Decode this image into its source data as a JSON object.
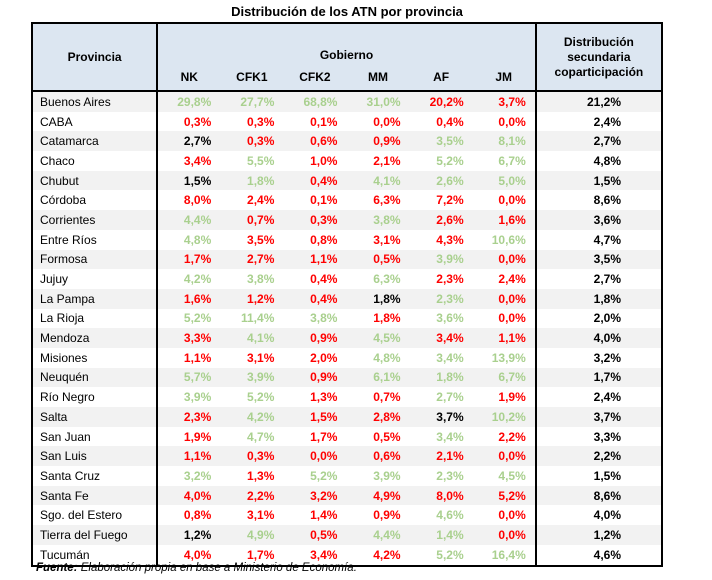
{
  "title": "Distribución de los ATN por provincia",
  "colors": {
    "above": "#a9d08e",
    "below": "#ff0000",
    "equal": "#000000",
    "header_bg": "#dce6f1",
    "row_stripe": "#f2f2f2",
    "border": "#000000"
  },
  "table": {
    "col_province": "Provincia",
    "group_header": "Gobierno",
    "gov_columns": [
      "NK",
      "CFK1",
      "CFK2",
      "MM",
      "AF",
      "JM"
    ],
    "col_distribution": "Distribución secundaria coparticipación",
    "rows": [
      {
        "province": "Buenos Aires",
        "values": [
          {
            "v": "29,8%",
            "t": "above"
          },
          {
            "v": "27,7%",
            "t": "above"
          },
          {
            "v": "68,8%",
            "t": "above"
          },
          {
            "v": "31,0%",
            "t": "above"
          },
          {
            "v": "20,2%",
            "t": "below"
          },
          {
            "v": "3,7%",
            "t": "below"
          }
        ],
        "dist": "21,2%"
      },
      {
        "province": "CABA",
        "values": [
          {
            "v": "0,3%",
            "t": "below"
          },
          {
            "v": "0,3%",
            "t": "below"
          },
          {
            "v": "0,1%",
            "t": "below"
          },
          {
            "v": "0,0%",
            "t": "below"
          },
          {
            "v": "0,4%",
            "t": "below"
          },
          {
            "v": "0,0%",
            "t": "below"
          }
        ],
        "dist": "2,4%"
      },
      {
        "province": "Catamarca",
        "values": [
          {
            "v": "2,7%",
            "t": "equal"
          },
          {
            "v": "0,3%",
            "t": "below"
          },
          {
            "v": "0,6%",
            "t": "below"
          },
          {
            "v": "0,9%",
            "t": "below"
          },
          {
            "v": "3,5%",
            "t": "above"
          },
          {
            "v": "8,1%",
            "t": "above"
          }
        ],
        "dist": "2,7%"
      },
      {
        "province": "Chaco",
        "values": [
          {
            "v": "3,4%",
            "t": "below"
          },
          {
            "v": "5,5%",
            "t": "above"
          },
          {
            "v": "1,0%",
            "t": "below"
          },
          {
            "v": "2,1%",
            "t": "below"
          },
          {
            "v": "5,2%",
            "t": "above"
          },
          {
            "v": "6,7%",
            "t": "above"
          }
        ],
        "dist": "4,8%"
      },
      {
        "province": "Chubut",
        "values": [
          {
            "v": "1,5%",
            "t": "equal"
          },
          {
            "v": "1,8%",
            "t": "above"
          },
          {
            "v": "0,4%",
            "t": "below"
          },
          {
            "v": "4,1%",
            "t": "above"
          },
          {
            "v": "2,6%",
            "t": "above"
          },
          {
            "v": "5,0%",
            "t": "above"
          }
        ],
        "dist": "1,5%"
      },
      {
        "province": "Córdoba",
        "values": [
          {
            "v": "8,0%",
            "t": "below"
          },
          {
            "v": "2,4%",
            "t": "below"
          },
          {
            "v": "0,1%",
            "t": "below"
          },
          {
            "v": "6,3%",
            "t": "below"
          },
          {
            "v": "7,2%",
            "t": "below"
          },
          {
            "v": "0,0%",
            "t": "below"
          }
        ],
        "dist": "8,6%"
      },
      {
        "province": "Corrientes",
        "values": [
          {
            "v": "4,4%",
            "t": "above"
          },
          {
            "v": "0,7%",
            "t": "below"
          },
          {
            "v": "0,3%",
            "t": "below"
          },
          {
            "v": "3,8%",
            "t": "above"
          },
          {
            "v": "2,6%",
            "t": "below"
          },
          {
            "v": "1,6%",
            "t": "below"
          }
        ],
        "dist": "3,6%"
      },
      {
        "province": "Entre Ríos",
        "values": [
          {
            "v": "4,8%",
            "t": "above"
          },
          {
            "v": "3,5%",
            "t": "below"
          },
          {
            "v": "0,8%",
            "t": "below"
          },
          {
            "v": "3,1%",
            "t": "below"
          },
          {
            "v": "4,3%",
            "t": "below"
          },
          {
            "v": "10,6%",
            "t": "above"
          }
        ],
        "dist": "4,7%"
      },
      {
        "province": "Formosa",
        "values": [
          {
            "v": "1,7%",
            "t": "below"
          },
          {
            "v": "2,7%",
            "t": "below"
          },
          {
            "v": "1,1%",
            "t": "below"
          },
          {
            "v": "0,5%",
            "t": "below"
          },
          {
            "v": "3,9%",
            "t": "above"
          },
          {
            "v": "0,0%",
            "t": "below"
          }
        ],
        "dist": "3,5%"
      },
      {
        "province": "Jujuy",
        "values": [
          {
            "v": "4,2%",
            "t": "above"
          },
          {
            "v": "3,8%",
            "t": "above"
          },
          {
            "v": "0,4%",
            "t": "below"
          },
          {
            "v": "6,3%",
            "t": "above"
          },
          {
            "v": "2,3%",
            "t": "below"
          },
          {
            "v": "2,4%",
            "t": "below"
          }
        ],
        "dist": "2,7%"
      },
      {
        "province": "La Pampa",
        "values": [
          {
            "v": "1,6%",
            "t": "below"
          },
          {
            "v": "1,2%",
            "t": "below"
          },
          {
            "v": "0,4%",
            "t": "below"
          },
          {
            "v": "1,8%",
            "t": "equal"
          },
          {
            "v": "2,3%",
            "t": "above"
          },
          {
            "v": "0,0%",
            "t": "below"
          }
        ],
        "dist": "1,8%"
      },
      {
        "province": "La Rioja",
        "values": [
          {
            "v": "5,2%",
            "t": "above"
          },
          {
            "v": "11,4%",
            "t": "above"
          },
          {
            "v": "3,8%",
            "t": "above"
          },
          {
            "v": "1,8%",
            "t": "below"
          },
          {
            "v": "3,6%",
            "t": "above"
          },
          {
            "v": "0,0%",
            "t": "below"
          }
        ],
        "dist": "2,0%"
      },
      {
        "province": "Mendoza",
        "values": [
          {
            "v": "3,3%",
            "t": "below"
          },
          {
            "v": "4,1%",
            "t": "above"
          },
          {
            "v": "0,9%",
            "t": "below"
          },
          {
            "v": "4,5%",
            "t": "above"
          },
          {
            "v": "3,4%",
            "t": "below"
          },
          {
            "v": "1,1%",
            "t": "below"
          }
        ],
        "dist": "4,0%"
      },
      {
        "province": "Misiones",
        "values": [
          {
            "v": "1,1%",
            "t": "below"
          },
          {
            "v": "3,1%",
            "t": "below"
          },
          {
            "v": "2,0%",
            "t": "below"
          },
          {
            "v": "4,8%",
            "t": "above"
          },
          {
            "v": "3,4%",
            "t": "above"
          },
          {
            "v": "13,9%",
            "t": "above"
          }
        ],
        "dist": "3,2%"
      },
      {
        "province": "Neuquén",
        "values": [
          {
            "v": "5,7%",
            "t": "above"
          },
          {
            "v": "3,9%",
            "t": "above"
          },
          {
            "v": "0,9%",
            "t": "below"
          },
          {
            "v": "6,1%",
            "t": "above"
          },
          {
            "v": "1,8%",
            "t": "above"
          },
          {
            "v": "6,7%",
            "t": "above"
          }
        ],
        "dist": "1,7%"
      },
      {
        "province": "Río Negro",
        "values": [
          {
            "v": "3,9%",
            "t": "above"
          },
          {
            "v": "5,2%",
            "t": "above"
          },
          {
            "v": "1,3%",
            "t": "below"
          },
          {
            "v": "0,7%",
            "t": "below"
          },
          {
            "v": "2,7%",
            "t": "above"
          },
          {
            "v": "1,9%",
            "t": "below"
          }
        ],
        "dist": "2,4%"
      },
      {
        "province": "Salta",
        "values": [
          {
            "v": "2,3%",
            "t": "below"
          },
          {
            "v": "4,2%",
            "t": "above"
          },
          {
            "v": "1,5%",
            "t": "below"
          },
          {
            "v": "2,8%",
            "t": "below"
          },
          {
            "v": "3,7%",
            "t": "equal"
          },
          {
            "v": "10,2%",
            "t": "above"
          }
        ],
        "dist": "3,7%"
      },
      {
        "province": "San Juan",
        "values": [
          {
            "v": "1,9%",
            "t": "below"
          },
          {
            "v": "4,7%",
            "t": "above"
          },
          {
            "v": "1,7%",
            "t": "below"
          },
          {
            "v": "0,5%",
            "t": "below"
          },
          {
            "v": "3,4%",
            "t": "above"
          },
          {
            "v": "2,2%",
            "t": "below"
          }
        ],
        "dist": "3,3%"
      },
      {
        "province": "San Luis",
        "values": [
          {
            "v": "1,1%",
            "t": "below"
          },
          {
            "v": "0,3%",
            "t": "below"
          },
          {
            "v": "0,0%",
            "t": "below"
          },
          {
            "v": "0,6%",
            "t": "below"
          },
          {
            "v": "2,1%",
            "t": "below"
          },
          {
            "v": "0,0%",
            "t": "below"
          }
        ],
        "dist": "2,2%"
      },
      {
        "province": "Santa Cruz",
        "values": [
          {
            "v": "3,2%",
            "t": "above"
          },
          {
            "v": "1,3%",
            "t": "below"
          },
          {
            "v": "5,2%",
            "t": "above"
          },
          {
            "v": "3,9%",
            "t": "above"
          },
          {
            "v": "2,3%",
            "t": "above"
          },
          {
            "v": "4,5%",
            "t": "above"
          }
        ],
        "dist": "1,5%"
      },
      {
        "province": "Santa Fe",
        "values": [
          {
            "v": "4,0%",
            "t": "below"
          },
          {
            "v": "2,2%",
            "t": "below"
          },
          {
            "v": "3,2%",
            "t": "below"
          },
          {
            "v": "4,9%",
            "t": "below"
          },
          {
            "v": "8,0%",
            "t": "below"
          },
          {
            "v": "5,2%",
            "t": "below"
          }
        ],
        "dist": "8,6%"
      },
      {
        "province": "Sgo. del Estero",
        "values": [
          {
            "v": "0,8%",
            "t": "below"
          },
          {
            "v": "3,1%",
            "t": "below"
          },
          {
            "v": "1,4%",
            "t": "below"
          },
          {
            "v": "0,9%",
            "t": "below"
          },
          {
            "v": "4,6%",
            "t": "above"
          },
          {
            "v": "0,0%",
            "t": "below"
          }
        ],
        "dist": "4,0%"
      },
      {
        "province": "Tierra del Fuego",
        "values": [
          {
            "v": "1,2%",
            "t": "equal"
          },
          {
            "v": "4,9%",
            "t": "above"
          },
          {
            "v": "0,5%",
            "t": "below"
          },
          {
            "v": "4,4%",
            "t": "above"
          },
          {
            "v": "1,4%",
            "t": "above"
          },
          {
            "v": "0,0%",
            "t": "below"
          }
        ],
        "dist": "1,2%"
      },
      {
        "province": "Tucumán",
        "values": [
          {
            "v": "4,0%",
            "t": "below"
          },
          {
            "v": "1,7%",
            "t": "below"
          },
          {
            "v": "3,4%",
            "t": "below"
          },
          {
            "v": "4,2%",
            "t": "below"
          },
          {
            "v": "5,2%",
            "t": "above"
          },
          {
            "v": "16,4%",
            "t": "above"
          }
        ],
        "dist": "4,6%"
      }
    ]
  },
  "source_note": {
    "label": "Fuente:",
    "text": " Elaboración propia en base a Ministerio de Economía."
  },
  "chart_data": {
    "type": "table",
    "title": "Distribución de los ATN por provincia",
    "columns": [
      "Provincia",
      "NK",
      "CFK1",
      "CFK2",
      "MM",
      "AF",
      "JM",
      "Distribución secundaria coparticipación"
    ],
    "column_groups": {
      "Gobierno": [
        "NK",
        "CFK1",
        "CFK2",
        "MM",
        "AF",
        "JM"
      ]
    },
    "units": "%",
    "decimal_separator": ",",
    "rows": [
      [
        "Buenos Aires",
        29.8,
        27.7,
        68.8,
        31.0,
        20.2,
        3.7,
        21.2
      ],
      [
        "CABA",
        0.3,
        0.3,
        0.1,
        0.0,
        0.4,
        0.0,
        2.4
      ],
      [
        "Catamarca",
        2.7,
        0.3,
        0.6,
        0.9,
        3.5,
        8.1,
        2.7
      ],
      [
        "Chaco",
        3.4,
        5.5,
        1.0,
        2.1,
        5.2,
        6.7,
        4.8
      ],
      [
        "Chubut",
        1.5,
        1.8,
        0.4,
        4.1,
        2.6,
        5.0,
        1.5
      ],
      [
        "Córdoba",
        8.0,
        2.4,
        0.1,
        6.3,
        7.2,
        0.0,
        8.6
      ],
      [
        "Corrientes",
        4.4,
        0.7,
        0.3,
        3.8,
        2.6,
        1.6,
        3.6
      ],
      [
        "Entre Ríos",
        4.8,
        3.5,
        0.8,
        3.1,
        4.3,
        10.6,
        4.7
      ],
      [
        "Formosa",
        1.7,
        2.7,
        1.1,
        0.5,
        3.9,
        0.0,
        3.5
      ],
      [
        "Jujuy",
        4.2,
        3.8,
        0.4,
        6.3,
        2.3,
        2.4,
        2.7
      ],
      [
        "La Pampa",
        1.6,
        1.2,
        0.4,
        1.8,
        2.3,
        0.0,
        1.8
      ],
      [
        "La Rioja",
        5.2,
        11.4,
        3.8,
        1.8,
        3.6,
        0.0,
        2.0
      ],
      [
        "Mendoza",
        3.3,
        4.1,
        0.9,
        4.5,
        3.4,
        1.1,
        4.0
      ],
      [
        "Misiones",
        1.1,
        3.1,
        2.0,
        4.8,
        3.4,
        13.9,
        3.2
      ],
      [
        "Neuquén",
        5.7,
        3.9,
        0.9,
        6.1,
        1.8,
        6.7,
        1.7
      ],
      [
        "Río Negro",
        3.9,
        5.2,
        1.3,
        0.7,
        2.7,
        1.9,
        2.4
      ],
      [
        "Salta",
        2.3,
        4.2,
        1.5,
        2.8,
        3.7,
        10.2,
        3.7
      ],
      [
        "San Juan",
        1.9,
        4.7,
        1.7,
        0.5,
        3.4,
        2.2,
        3.3
      ],
      [
        "San Luis",
        1.1,
        0.3,
        0.0,
        0.6,
        2.1,
        0.0,
        2.2
      ],
      [
        "Santa Cruz",
        3.2,
        1.3,
        5.2,
        3.9,
        2.3,
        4.5,
        1.5
      ],
      [
        "Santa Fe",
        4.0,
        2.2,
        3.2,
        4.9,
        8.0,
        5.2,
        8.6
      ],
      [
        "Sgo. del Estero",
        0.8,
        3.1,
        1.4,
        0.9,
        4.6,
        0.0,
        4.0
      ],
      [
        "Tierra del Fuego",
        1.2,
        4.9,
        0.5,
        4.4,
        1.4,
        0.0,
        1.2
      ],
      [
        "Tucumán",
        4.0,
        1.7,
        3.4,
        4.2,
        5.2,
        16.4,
        4.6
      ]
    ],
    "color_coding": {
      "green #a9d08e": "government-period share above secondary coparticipation share",
      "red #ff0000": "government-period share below secondary coparticipation share",
      "black #000000": "government-period share equal to secondary coparticipation share"
    },
    "legend_position": "none",
    "grid": "table borders, striped rows"
  }
}
